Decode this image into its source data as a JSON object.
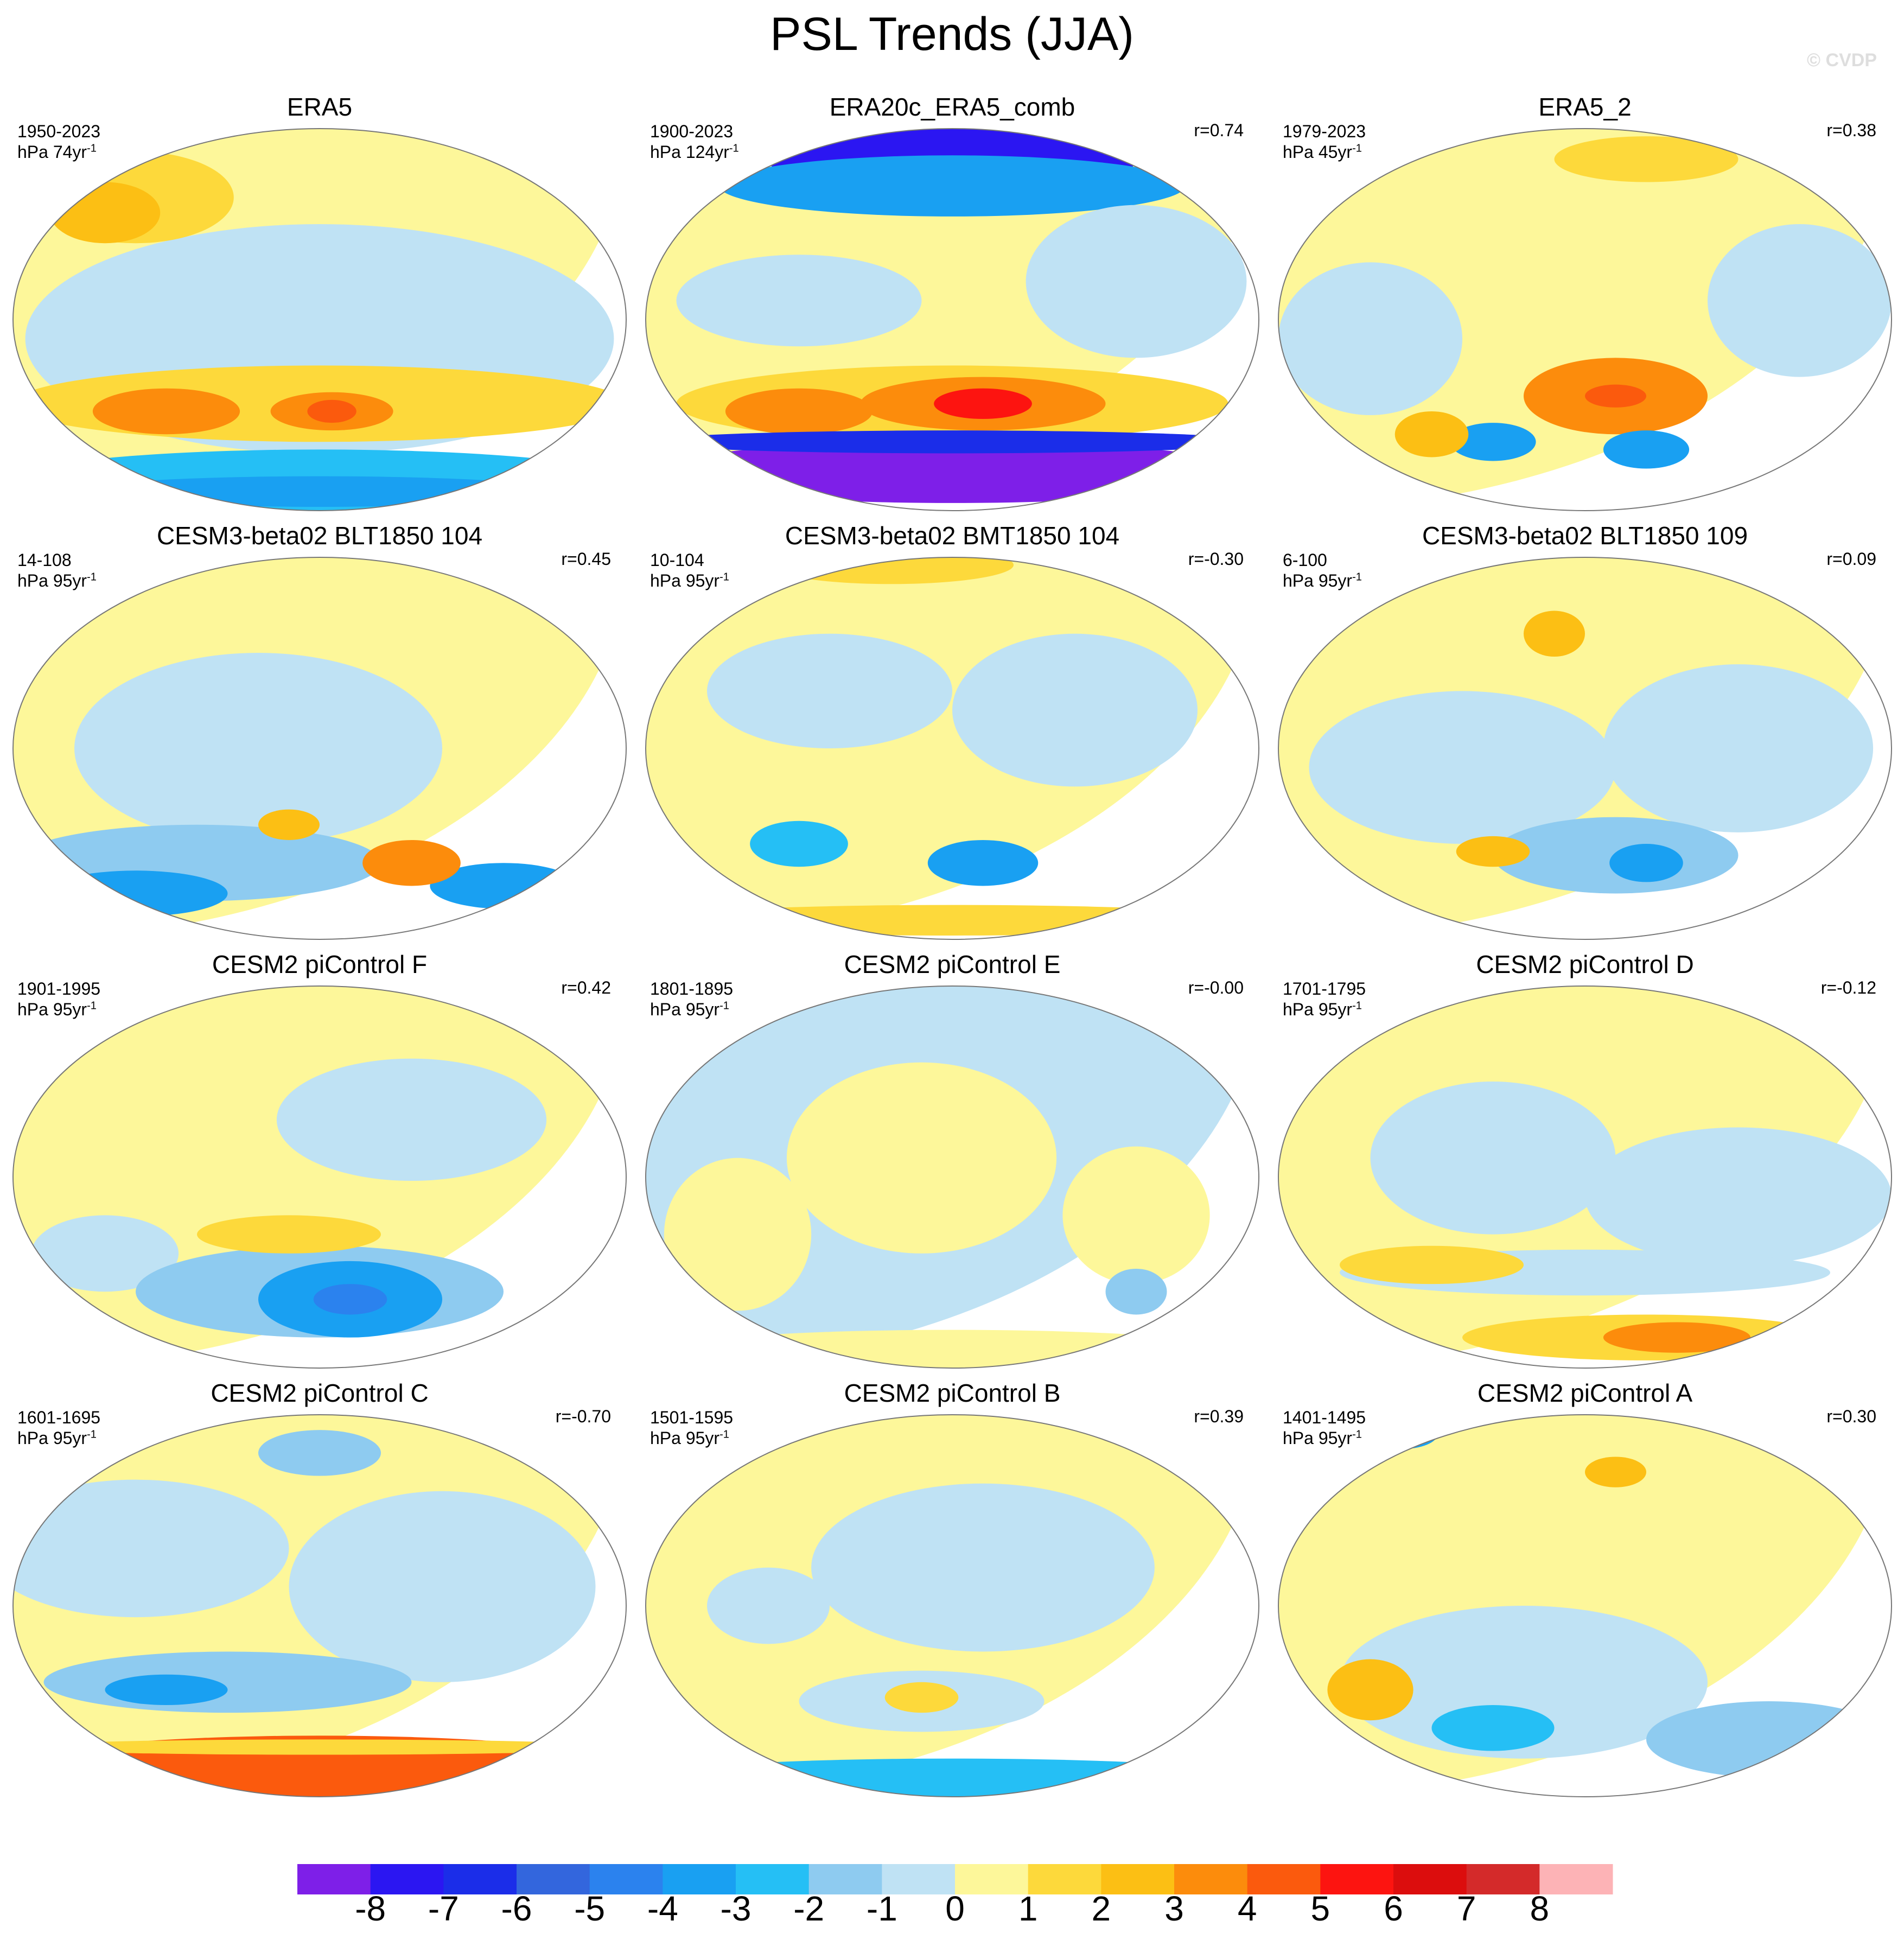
{
  "title": "PSL Trends (JJA)",
  "watermark": "© CVDP",
  "colorbar": {
    "labels": [
      "-8",
      "-7",
      "-6",
      "-5",
      "-4",
      "-3",
      "-2",
      "-1",
      "0",
      "1",
      "2",
      "3",
      "4",
      "5",
      "6",
      "7",
      "8"
    ],
    "colors": [
      "#7e1fe8",
      "#2b16f2",
      "#1b2de9",
      "#3366dd",
      "#2b82ee",
      "#19a0f2",
      "#25bff5",
      "#8ecbf0",
      "#bfe2f4",
      "#fdf79a",
      "#fdd93b",
      "#fcbf14",
      "#fc8c0c",
      "#fb5a0d",
      "#fd1410",
      "#dc0d0d",
      "#d42a2a",
      "#fdb3b6"
    ]
  },
  "chart_data": [
    {
      "type": "heatmap",
      "title": "ERA5",
      "years": "1950-2023",
      "units": "hPa 74yr",
      "corr": "",
      "pattern": "era5"
    },
    {
      "type": "heatmap",
      "title": "ERA20c_ERA5_comb",
      "years": "1900-2023",
      "units": "hPa 124yr",
      "corr": "r=0.74",
      "pattern": "era20c"
    },
    {
      "type": "heatmap",
      "title": "ERA5_2",
      "years": "1979-2023",
      "units": "hPa 45yr",
      "corr": "r=0.38",
      "pattern": "era5b"
    },
    {
      "type": "heatmap",
      "title": "CESM3-beta02 BLT1850 104",
      "years": "14-108",
      "units": "hPa 95yr",
      "corr": "r=0.45",
      "pattern": "blt104"
    },
    {
      "type": "heatmap",
      "title": "CESM3-beta02 BMT1850 104",
      "years": "10-104",
      "units": "hPa 95yr",
      "corr": "r=-0.30",
      "pattern": "bmt104"
    },
    {
      "type": "heatmap",
      "title": "CESM3-beta02 BLT1850 109",
      "years": "6-100",
      "units": "hPa 95yr",
      "corr": "r=0.09",
      "pattern": "blt109"
    },
    {
      "type": "heatmap",
      "title": "CESM2 piControl F",
      "years": "1901-1995",
      "units": "hPa 95yr",
      "corr": "r=0.42",
      "pattern": "picF"
    },
    {
      "type": "heatmap",
      "title": "CESM2 piControl E",
      "years": "1801-1895",
      "units": "hPa 95yr",
      "corr": "r=-0.00",
      "pattern": "picE"
    },
    {
      "type": "heatmap",
      "title": "CESM2 piControl D",
      "years": "1701-1795",
      "units": "hPa 95yr",
      "corr": "r=-0.12",
      "pattern": "picD"
    },
    {
      "type": "heatmap",
      "title": "CESM2 piControl C",
      "years": "1601-1695",
      "units": "hPa 95yr",
      "corr": "r=-0.70",
      "pattern": "picC"
    },
    {
      "type": "heatmap",
      "title": "CESM2 piControl B",
      "years": "1501-1595",
      "units": "hPa 95yr",
      "corr": "r=0.39",
      "pattern": "picB"
    },
    {
      "type": "heatmap",
      "title": "CESM2 piControl A",
      "years": "1401-1495",
      "units": "hPa 95yr",
      "corr": "r=0.30",
      "pattern": "picA"
    }
  ]
}
